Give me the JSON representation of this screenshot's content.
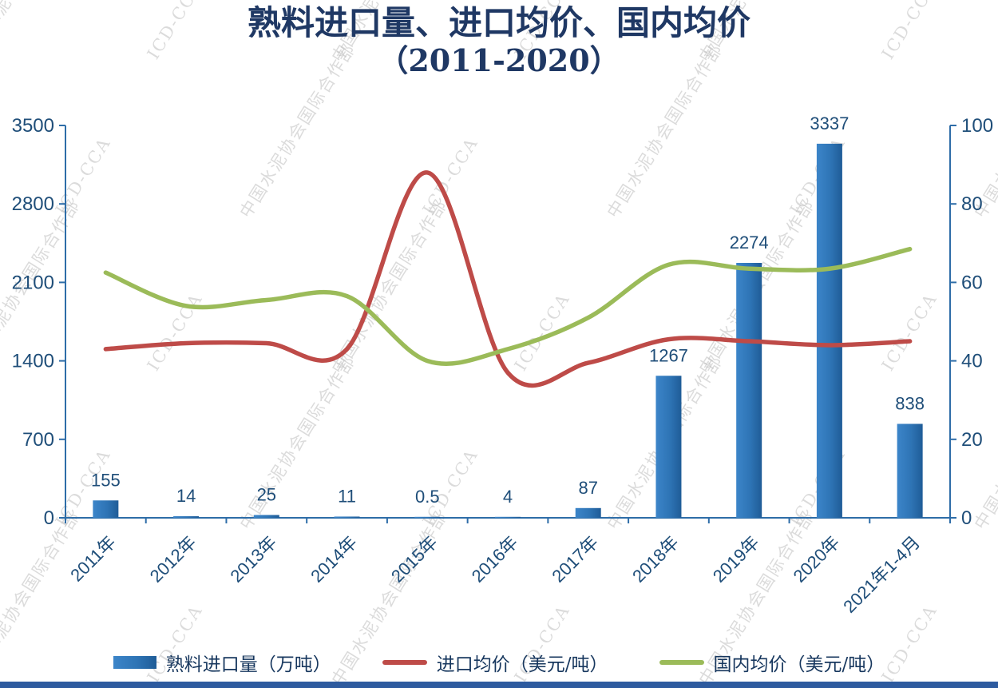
{
  "title": {
    "line1": "熟料进口量、进口均价、国内均价",
    "line2": "（2011-2020）"
  },
  "watermark": {
    "org": "中国水泥协会国际合作部",
    "abbr": "ICD-CCA"
  },
  "colors": {
    "title": "#1F3864",
    "axis_line": "#2E6DA8",
    "axis_text": "#1F4E79",
    "bar": "#2E74B5",
    "bar_label": "#1F4E79",
    "red_line": "#BE4B48",
    "green_line": "#9BBB59",
    "watermark": "#BFBFBF",
    "bottom_strip": "#2E5B9F"
  },
  "chart_data": {
    "type": "bar",
    "subtype": "combo-bar-line",
    "title": "熟料进口量、进口均价、国内均价（2011-2020）",
    "categories": [
      "2011年",
      "2012年",
      "2013年",
      "2014年",
      "2015年",
      "2016年",
      "2017年",
      "2018年",
      "2019年",
      "2020年",
      "2021年1-4月"
    ],
    "bar_series": {
      "name": "熟料进口量（万吨）",
      "axis": "left",
      "color": "#2E74B5",
      "values": [
        155,
        14,
        25,
        11,
        0.5,
        4,
        87,
        1267,
        2274,
        3337,
        838
      ],
      "labels": [
        "155",
        "14",
        "25",
        "11",
        "0.5",
        "4",
        "87",
        "1267",
        "2274",
        "3337",
        "838"
      ]
    },
    "line_series": [
      {
        "name": "进口均价（美元/吨）",
        "axis": "right",
        "color": "#BE4B48",
        "values": [
          43,
          44.5,
          44.5,
          43,
          88,
          37,
          39.5,
          45.5,
          45,
          44,
          45
        ]
      },
      {
        "name": "国内均价（美元/吨）",
        "axis": "right",
        "color": "#9BBB59",
        "values": [
          62.5,
          54,
          55.5,
          56.5,
          40,
          43,
          51,
          64.5,
          63.5,
          63.5,
          68.5
        ]
      }
    ],
    "left_axis": {
      "min": 0,
      "max": 3500,
      "ticks": [
        0,
        700,
        1400,
        2100,
        2800,
        3500
      ]
    },
    "right_axis": {
      "min": 0,
      "max": 100,
      "ticks": [
        0,
        20,
        40,
        60,
        80,
        100
      ]
    },
    "grid": false,
    "legend_position": "bottom"
  }
}
